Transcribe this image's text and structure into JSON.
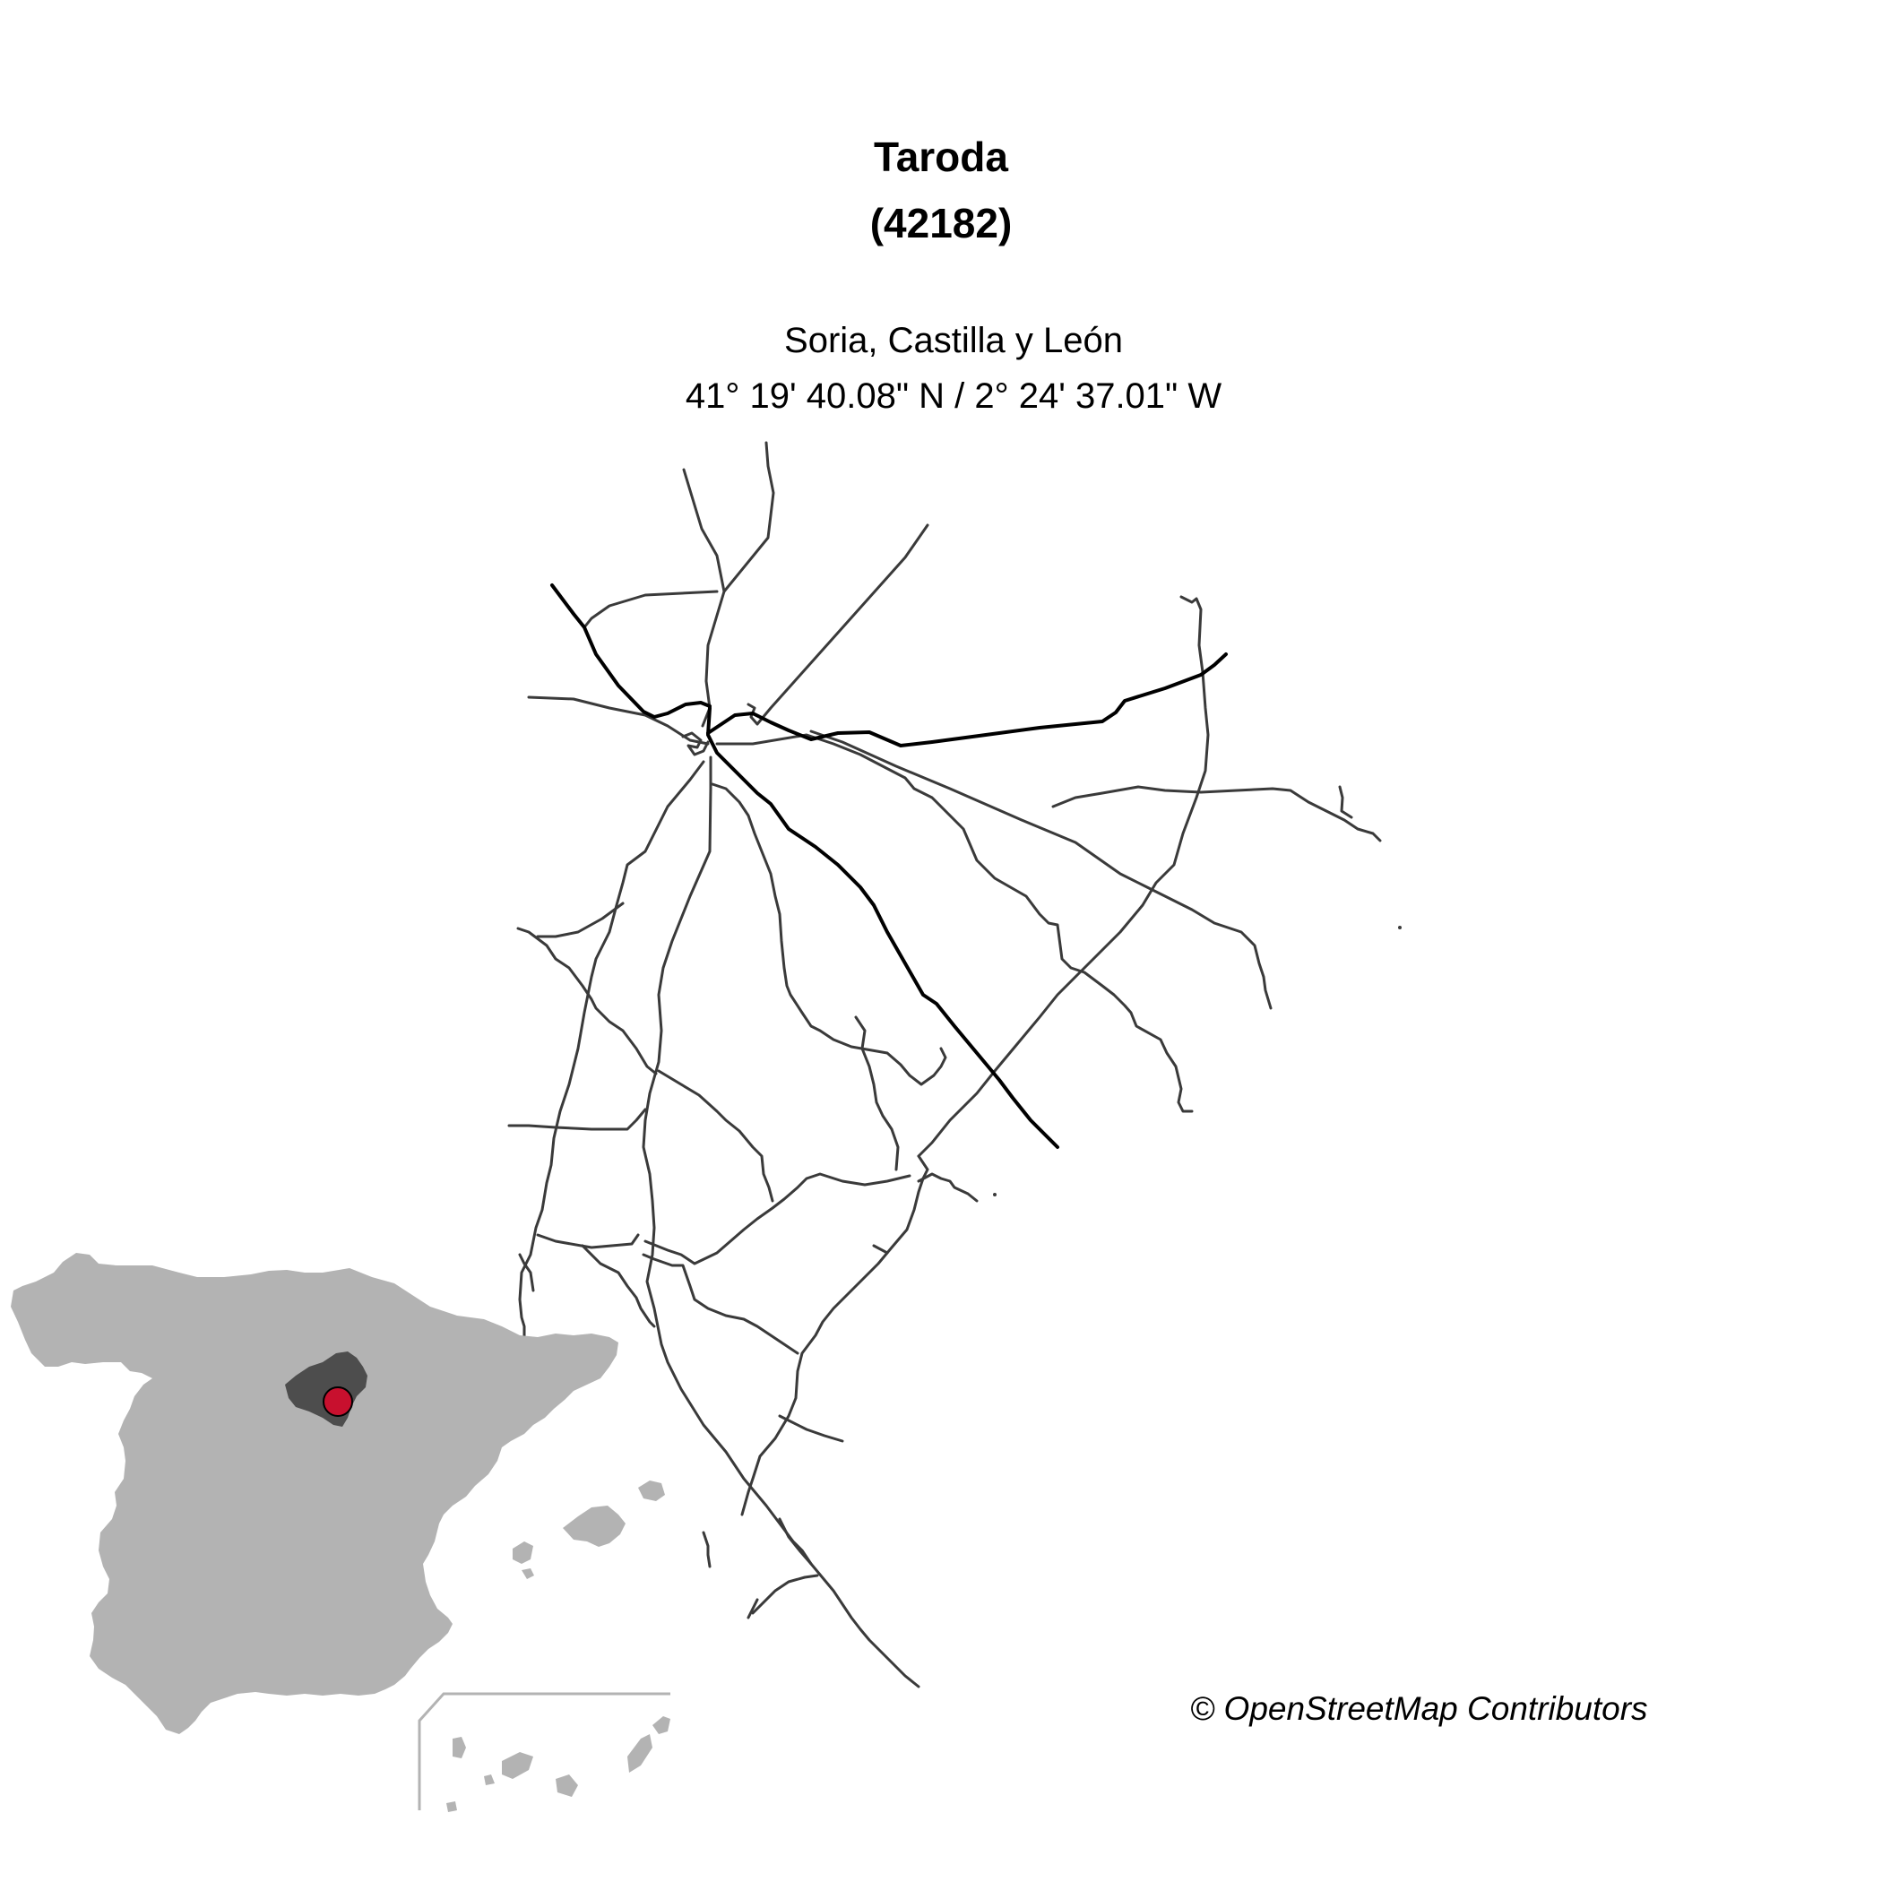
{
  "title": {
    "name": "Taroda",
    "code": "(42182)"
  },
  "subtitle": {
    "region": "Soria, Castilla y León",
    "coordinates": "41° 19' 40.08\" N / 2° 24' 37.01\" W"
  },
  "attribution": "© OpenStreetMap Contributors",
  "colors": {
    "minor_road": "#3a3a3a",
    "major_road": "#000000",
    "country_fill": "#b3b3b3",
    "province_fill": "#4d4d4d",
    "location_marker": "#c8102e",
    "canary_frame": "#b3b3b3"
  }
}
